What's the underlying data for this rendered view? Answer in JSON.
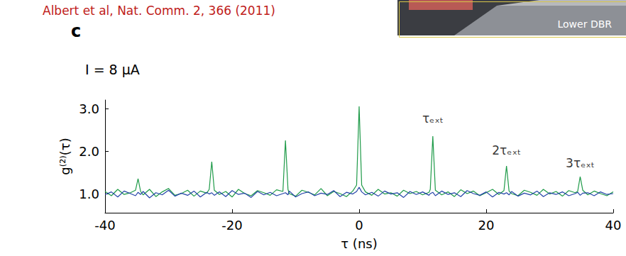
{
  "chart_data": {
    "type": "line",
    "title": "Albert et al, Nat. Comm. 2, 366 (2011)",
    "panel_label": "c",
    "inset_text": "Lower DBR",
    "xlabel": "τ (ns)",
    "ylabel": "g⁽²⁾(τ)",
    "xlim": [
      -40,
      40
    ],
    "xticks": [
      -40,
      -20,
      0,
      20,
      40
    ],
    "ylim": [
      0.55,
      3.2
    ],
    "yticks": [
      {
        "value": 1,
        "label": "1.0"
      },
      {
        "value": 2,
        "label": "2.0"
      },
      {
        "value": 3,
        "label": "3.0"
      }
    ],
    "grid": false,
    "annotations": [
      {
        "text": "I = 8 μA"
      },
      {
        "text": "τₑₓₜ",
        "x": 11.6,
        "y": 2.55
      },
      {
        "text": "2τₑₓₜ",
        "x": 23.2,
        "y": 1.8
      },
      {
        "text": "3τₑₓₜ",
        "x": 34.8,
        "y": 1.5
      }
    ],
    "x": [
      -40,
      -39,
      -38,
      -37,
      -36,
      -35.2,
      -34.8,
      -34.4,
      -34,
      -33,
      -32,
      -31,
      -30,
      -29,
      -28,
      -27,
      -26,
      -25,
      -24,
      -23.6,
      -23.2,
      -22.8,
      -22,
      -21,
      -20,
      -19,
      -18,
      -17,
      -16,
      -15,
      -14,
      -13,
      -12,
      -11.6,
      -11.2,
      -11,
      -10,
      -9,
      -8,
      -7,
      -6,
      -5,
      -4,
      -3,
      -2,
      -1,
      -0.4,
      0,
      0.4,
      1,
      2,
      3,
      4,
      5,
      6,
      7,
      8,
      9,
      10,
      11,
      11.2,
      11.6,
      12,
      13,
      14,
      15,
      16,
      17,
      18,
      19,
      20,
      21,
      22,
      22.8,
      23.2,
      23.6,
      24,
      25,
      26,
      27,
      28,
      29,
      30,
      31,
      32,
      33,
      34,
      34.4,
      34.8,
      35.2,
      36,
      37,
      38,
      39,
      40
    ],
    "series": [
      {
        "color": "#1e9a48",
        "values": [
          1.05,
          0.95,
          1.1,
          0.98,
          1.02,
          1.08,
          1.35,
          1.05,
          0.97,
          1.1,
          0.93,
          1.04,
          1.12,
          0.96,
          1.0,
          1.08,
          0.94,
          1.06,
          1.01,
          1.1,
          1.75,
          1.08,
          0.98,
          1.05,
          0.92,
          1.1,
          1.0,
          0.95,
          1.07,
          1.02,
          0.96,
          1.09,
          1.05,
          2.25,
          1.1,
          1.0,
          0.94,
          1.08,
          1.03,
          0.97,
          1.12,
          0.95,
          1.05,
          1.0,
          0.93,
          1.06,
          1.2,
          3.05,
          1.2,
          1.04,
          0.96,
          1.1,
          0.99,
          1.02,
          0.94,
          1.08,
          1.0,
          1.05,
          0.97,
          1.03,
          1.1,
          2.35,
          1.08,
          0.97,
          1.04,
          0.93,
          1.09,
          1.0,
          1.06,
          0.95,
          1.02,
          1.1,
          0.98,
          1.07,
          1.65,
          1.06,
          1.0,
          0.95,
          1.08,
          1.03,
          0.96,
          1.1,
          0.99,
          1.05,
          0.94,
          1.07,
          1.02,
          1.05,
          1.4,
          1.08,
          0.97,
          1.06,
          1.0,
          0.95,
          1.04
        ]
      },
      {
        "color": "#2444a8",
        "values": [
          0.98,
          1.04,
          0.92,
          1.06,
          1.0,
          0.95,
          1.03,
          0.98,
          1.05,
          0.9,
          1.02,
          0.97,
          1.08,
          0.94,
          1.01,
          0.96,
          1.06,
          0.92,
          1.03,
          0.99,
          1.02,
          0.96,
          1.04,
          0.93,
          1.07,
          0.98,
          1.01,
          0.91,
          1.05,
          0.97,
          1.03,
          0.95,
          1.0,
          1.02,
          0.97,
          1.06,
          0.92,
          1.0,
          1.04,
          0.95,
          1.01,
          0.98,
          1.07,
          0.93,
          1.03,
          0.99,
          1.05,
          1.15,
          1.04,
          0.97,
          1.03,
          0.94,
          1.06,
          0.99,
          1.02,
          0.91,
          1.05,
          0.98,
          1.04,
          0.96,
          1.0,
          1.03,
          0.95,
          1.06,
          0.98,
          1.02,
          0.93,
          1.07,
          1.0,
          0.96,
          1.04,
          0.92,
          1.03,
          0.99,
          1.02,
          0.97,
          1.05,
          0.94,
          1.01,
          0.97,
          1.06,
          0.93,
          1.02,
          0.98,
          1.04,
          0.95,
          1.0,
          1.03,
          0.96,
          1.01,
          1.02,
          0.95,
          1.04,
          0.98,
          1.0
        ]
      }
    ]
  }
}
